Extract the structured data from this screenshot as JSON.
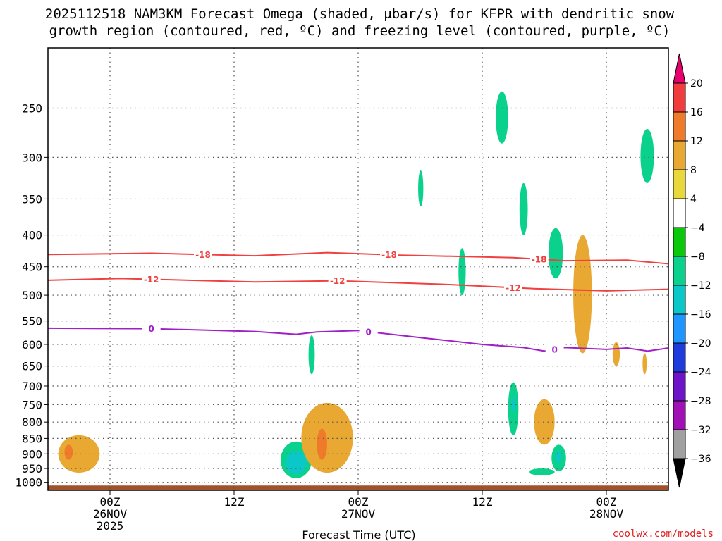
{
  "chart_data": {
    "type": "heatmap",
    "title": "2025112518 NAM3KM Forecast Omega (shaded, μbar/s) for KFPR with dendritic snow growth region (contoured, red, ºC) and freezing level (contoured, purple, ºC)",
    "title_lines": [
      "2025112518 NAM3KM Forecast Omega (shaded, μbar/s) for KFPR with dendritic snow",
      "growth region (contoured, red, ºC) and freezing level (contoured, purple, ºC)"
    ],
    "xlabel": "Forecast Time (UTC)",
    "x_range_hours": [
      0,
      60
    ],
    "x_ticks": [
      {
        "hour": 6,
        "lines": [
          "00Z",
          "26NOV",
          "2025"
        ]
      },
      {
        "hour": 18,
        "lines": [
          "12Z"
        ]
      },
      {
        "hour": 30,
        "lines": [
          "00Z",
          "27NOV"
        ]
      },
      {
        "hour": 42,
        "lines": [
          "12Z"
        ]
      },
      {
        "hour": 54,
        "lines": [
          "00Z",
          "28NOV"
        ]
      }
    ],
    "y_axis": "pressure (hPa), log scale",
    "y_range": [
      1030,
      200
    ],
    "y_ticks": [
      250,
      300,
      350,
      400,
      450,
      500,
      550,
      600,
      650,
      700,
      750,
      800,
      850,
      900,
      950,
      1000
    ],
    "grid": "dotted",
    "colorbar": {
      "ticks": [
        20,
        16,
        12,
        8,
        4,
        -4,
        -8,
        -12,
        -16,
        -20,
        -24,
        -28,
        -32,
        -36
      ],
      "colors": [
        "#e8006e",
        "#f03c3c",
        "#ee7a2a",
        "#e8a832",
        "#e8d83c",
        "#ffffff",
        "#0ac80a",
        "#0ad28c",
        "#0ac8c8",
        "#1e96ff",
        "#1e3cdc",
        "#6e14c8",
        "#a010b4",
        "#a0a0a0",
        "#000000"
      ]
    },
    "contours": [
      {
        "label": "-18",
        "color": "#f04040",
        "points": [
          [
            0,
            430
          ],
          [
            10,
            428
          ],
          [
            20,
            432
          ],
          [
            27,
            427
          ],
          [
            34,
            431
          ],
          [
            45,
            435
          ],
          [
            50,
            440
          ],
          [
            56,
            439
          ],
          [
            60,
            445
          ]
        ],
        "label_hours": [
          15,
          33,
          47.5
        ]
      },
      {
        "label": "-12",
        "color": "#f04040",
        "points": [
          [
            0,
            473
          ],
          [
            7,
            470
          ],
          [
            20,
            476
          ],
          [
            28,
            474
          ],
          [
            38,
            480
          ],
          [
            47,
            488
          ],
          [
            54,
            492
          ],
          [
            60,
            489
          ]
        ],
        "label_hours": [
          10,
          28,
          45
        ]
      },
      {
        "label": "0",
        "color": "#a020c8",
        "points": [
          [
            0,
            565
          ],
          [
            10,
            566
          ],
          [
            20,
            572
          ],
          [
            24,
            578
          ],
          [
            26,
            573
          ],
          [
            30,
            570
          ],
          [
            36,
            585
          ],
          [
            42,
            600
          ],
          [
            46,
            607
          ],
          [
            48,
            615
          ],
          [
            50,
            607
          ],
          [
            54,
            611
          ],
          [
            56,
            608
          ],
          [
            58,
            615
          ],
          [
            60,
            608
          ]
        ],
        "label_hours": [
          10,
          31,
          49
        ]
      }
    ],
    "shaded_regions": [
      {
        "level": 8,
        "x": [
          1,
          5
        ],
        "p": [
          840,
          965
        ]
      },
      {
        "level": 12,
        "x": [
          1.6,
          2.4
        ],
        "p": [
          870,
          920
        ]
      },
      {
        "level": -8,
        "x": [
          22.5,
          25.5
        ],
        "p": [
          860,
          985
        ]
      },
      {
        "level": -12,
        "x": [
          23,
          25
        ],
        "p": [
          890,
          970
        ]
      },
      {
        "level": 8,
        "x": [
          24.5,
          29.5
        ],
        "p": [
          745,
          965
        ]
      },
      {
        "level": 12,
        "x": [
          26,
          27
        ],
        "p": [
          820,
          920
        ]
      },
      {
        "level": -8,
        "x": [
          25.2,
          25.8
        ],
        "p": [
          580,
          670
        ]
      },
      {
        "level": -8,
        "x": [
          35.8,
          36.3
        ],
        "p": [
          315,
          360
        ]
      },
      {
        "level": -8,
        "x": [
          39.7,
          40.4
        ],
        "p": [
          420,
          500
        ]
      },
      {
        "level": -8,
        "x": [
          43.3,
          44.5
        ],
        "p": [
          235,
          285
        ]
      },
      {
        "level": -8,
        "x": [
          44.5,
          45.5
        ],
        "p": [
          690,
          840
        ]
      },
      {
        "level": -12,
        "x": [
          44.8,
          45.2
        ],
        "p": [
          730,
          770
        ]
      },
      {
        "level": -8,
        "x": [
          45.6,
          46.4
        ],
        "p": [
          330,
          400
        ]
      },
      {
        "level": -8,
        "x": [
          46.5,
          49
        ],
        "p": [
          950,
          975
        ]
      },
      {
        "level": 8,
        "x": [
          47,
          49
        ],
        "p": [
          735,
          870
        ]
      },
      {
        "level": -8,
        "x": [
          48.4,
          49.8
        ],
        "p": [
          390,
          470
        ]
      },
      {
        "level": -8,
        "x": [
          48.7,
          50.1
        ],
        "p": [
          870,
          960
        ]
      },
      {
        "level": -12,
        "x": [
          49.1,
          49.6
        ],
        "p": [
          890,
          930
        ]
      },
      {
        "level": 8,
        "x": [
          50.8,
          52.6
        ],
        "p": [
          400,
          620
        ]
      },
      {
        "level": 8,
        "x": [
          54.6,
          55.3
        ],
        "p": [
          595,
          650
        ]
      },
      {
        "level": 8,
        "x": [
          57.5,
          57.9
        ],
        "p": [
          620,
          670
        ]
      },
      {
        "level": -8,
        "x": [
          57.3,
          58.6
        ],
        "p": [
          270,
          330
        ]
      }
    ],
    "ground_color": "#a0522d"
  },
  "credit": "coolwx.com/models",
  "colors": {
    "credit": "#e02020",
    "grid": "#555555",
    "frame": "#000000"
  }
}
